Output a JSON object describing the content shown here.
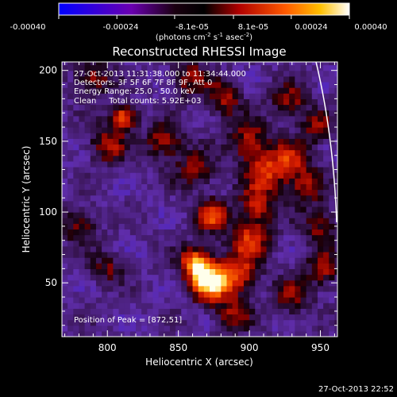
{
  "colorbar": {
    "ticks": [
      "-0.00040",
      "-0.00024",
      "-8.1e-05",
      "8.1e-05",
      "0.00024",
      "0.00040"
    ],
    "min": -0.0004,
    "max": 0.0004,
    "unit_main": "(photons cm",
    "unit_exp1": "-2",
    "unit_mid": " s",
    "unit_exp2": "-1",
    "unit_end": " asec",
    "unit_exp3": "-2",
    "unit_close": ")"
  },
  "chart_data": {
    "type": "heatmap",
    "title": "Reconstructed RHESSI Image",
    "xlabel": "Heliocentric X (arcsec)",
    "ylabel": "Heliocentric Y (arcsec)",
    "xlim": [
      768,
      962
    ],
    "ylim": [
      12,
      206
    ],
    "x_ticks": [
      800,
      850,
      900,
      950
    ],
    "y_ticks": [
      50,
      100,
      150,
      200
    ],
    "info_lines": [
      "27-Oct-2013 11:31:38.000 to 11:34:44.000",
      "Detectors: 3F 5F 6F 7F 8F 9F, Att 0",
      "Energy Range: 25.0 - 50.0 keV",
      "Clean     Total counts: 5.92E+03"
    ],
    "peak_label": "Position of Peak = [872,51]",
    "peak": [
      872,
      51
    ],
    "sources": [
      {
        "x": 872,
        "y": 51,
        "amp": 1.0,
        "r": 9
      },
      {
        "x": 862,
        "y": 65,
        "amp": 0.7,
        "r": 8
      },
      {
        "x": 893,
        "y": 55,
        "amp": 0.55,
        "r": 9
      },
      {
        "x": 900,
        "y": 80,
        "amp": 0.55,
        "r": 10
      },
      {
        "x": 873,
        "y": 98,
        "amp": 0.6,
        "r": 8
      },
      {
        "x": 905,
        "y": 105,
        "amp": 0.45,
        "r": 9
      },
      {
        "x": 912,
        "y": 128,
        "amp": 0.5,
        "r": 10
      },
      {
        "x": 930,
        "y": 138,
        "amp": 0.45,
        "r": 9
      },
      {
        "x": 900,
        "y": 150,
        "amp": 0.45,
        "r": 10
      },
      {
        "x": 940,
        "y": 118,
        "amp": 0.4,
        "r": 9
      },
      {
        "x": 950,
        "y": 90,
        "amp": 0.35,
        "r": 9
      },
      {
        "x": 952,
        "y": 60,
        "amp": 0.4,
        "r": 9
      },
      {
        "x": 930,
        "y": 40,
        "amp": 0.35,
        "r": 9
      },
      {
        "x": 888,
        "y": 28,
        "amp": 0.35,
        "r": 9
      },
      {
        "x": 812,
        "y": 167,
        "amp": 0.7,
        "r": 6
      },
      {
        "x": 800,
        "y": 148,
        "amp": 0.45,
        "r": 9
      },
      {
        "x": 840,
        "y": 150,
        "amp": 0.45,
        "r": 9
      },
      {
        "x": 780,
        "y": 90,
        "amp": 0.35,
        "r": 9
      },
      {
        "x": 800,
        "y": 60,
        "amp": 0.3,
        "r": 8
      },
      {
        "x": 862,
        "y": 130,
        "amp": 0.4,
        "r": 9
      },
      {
        "x": 882,
        "y": 180,
        "amp": 0.4,
        "r": 9
      },
      {
        "x": 928,
        "y": 178,
        "amp": 0.4,
        "r": 9
      },
      {
        "x": 948,
        "y": 160,
        "amp": 0.35,
        "r": 8
      },
      {
        "x": 790,
        "y": 195,
        "amp": 0.4,
        "r": 9
      },
      {
        "x": 858,
        "y": 195,
        "amp": 0.35,
        "r": 9
      }
    ]
  },
  "footer": {
    "timestamp": "27-Oct-2013 22:52"
  }
}
